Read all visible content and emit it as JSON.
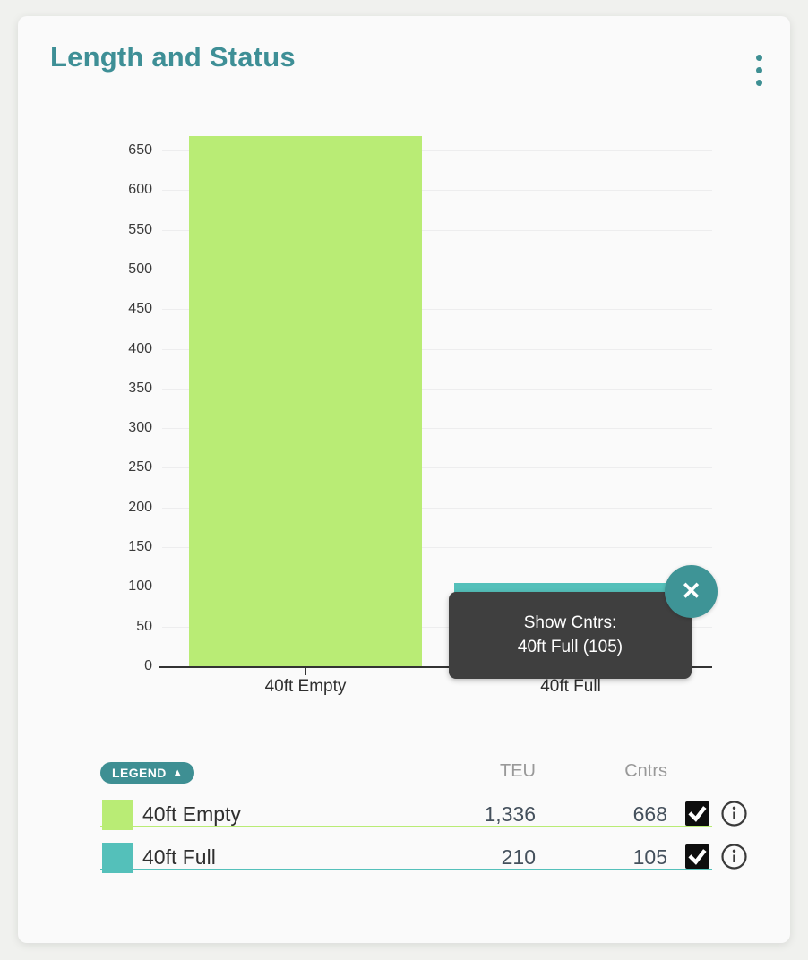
{
  "colors": {
    "accent_teal": "#3E8F93",
    "bar_green": "#B9EC75",
    "bar_teal": "#54C0BA",
    "tooltip_bg": "#3F3F3F",
    "card_bg": "#FAFAFA",
    "page_bg": "#F0F1EE",
    "axis": "#333333",
    "gridline": "#EDEDEE",
    "number_text": "#44505C",
    "column_header_gray": "#999999"
  },
  "header": {
    "title": "Length and Status",
    "menu_icon": "kebab-vertical-icon"
  },
  "chart_data": {
    "type": "bar",
    "title": "Length and Status",
    "categories": [
      "40ft Empty",
      "40ft Full"
    ],
    "values": [
      668,
      105
    ],
    "bar_colors": [
      "#B9EC75",
      "#54C0BA"
    ],
    "xlabel": "",
    "ylabel": "",
    "ylim": [
      0,
      650
    ],
    "ytick_step": 50,
    "grid": true,
    "legend_position": "bottom"
  },
  "tooltip": {
    "line1": "Show Cntrs:",
    "line2": "40ft Full (105)",
    "close_icon": "✕"
  },
  "legend": {
    "button_label": "LEGEND",
    "collapse_icon": "▲",
    "columns": [
      "TEU",
      "Cntrs"
    ],
    "rows": [
      {
        "label": "40ft Empty",
        "teu": "1,336",
        "cntrs": "668",
        "checked": true,
        "color": "#B9EC75"
      },
      {
        "label": "40ft Full",
        "teu": "210",
        "cntrs": "105",
        "checked": true,
        "color": "#54C0BA"
      }
    ]
  }
}
